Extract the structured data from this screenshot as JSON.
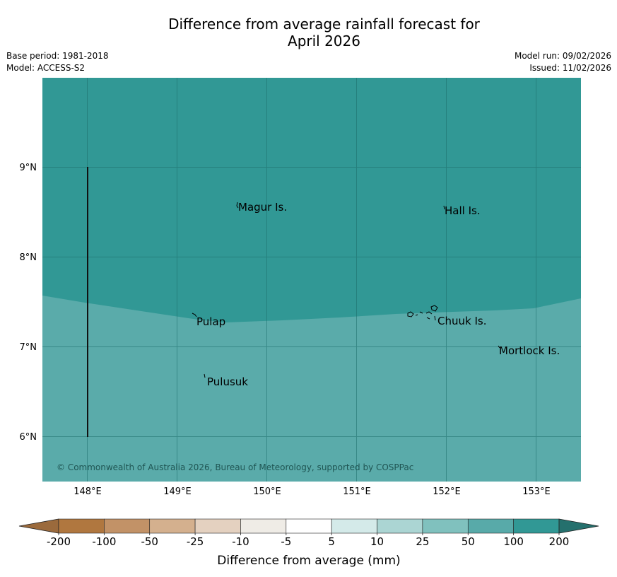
{
  "title_line1": "Difference from average rainfall forecast for",
  "title_line2": "April 2026",
  "base_period": "Base period: 1981-2018",
  "model": "Model: ACCESS-S2",
  "model_run": "Model run: 09/02/2026",
  "issued": "Issued: 11/02/2026",
  "copyright": "© Commonwealth of Australia 2026, Bureau of Meteorology, supported by COSPPac",
  "lat_labels": [
    "9°N",
    "8°N",
    "7°N",
    "6°N"
  ],
  "lon_labels": [
    "148°E",
    "149°E",
    "150°E",
    "151°E",
    "152°E",
    "153°E"
  ],
  "places": [
    "Magur Is.",
    "Hall Is.",
    "Pulap",
    "Chuuk Is.",
    "Mortlock Is.",
    "Pulusuk"
  ],
  "colorbar": {
    "ticks": [
      "-200",
      "-100",
      "-50",
      "-25",
      "-10",
      "-5",
      "5",
      "10",
      "25",
      "50",
      "100",
      "200"
    ],
    "colors": [
      "#9b6a3c",
      "#b0773f",
      "#c29267",
      "#d4b08e",
      "#e4d1c0",
      "#efece6",
      "#ffffff",
      "#d4eae9",
      "#abd5d3",
      "#80c1be",
      "#58aaa9",
      "#319895",
      "#25706d"
    ],
    "label": "Difference from average (mm)"
  },
  "map_colors": {
    "band_100": "#319895",
    "band_50": "#5aabaa"
  }
}
